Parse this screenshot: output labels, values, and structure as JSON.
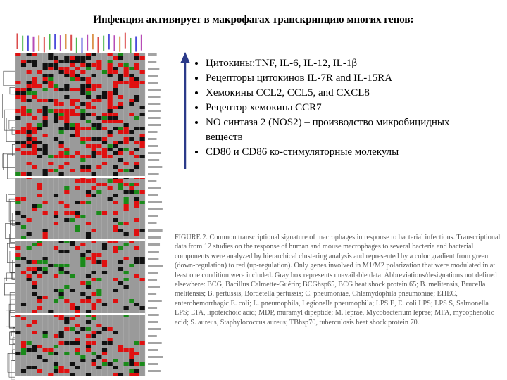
{
  "title": "Инфекция активирует в макрофагах транскрипцию многих генов:",
  "bullets": [
    "Цитокины:TNF, IL-6, IL-12, IL-1β",
    "Рецепторы цитокинов IL-7R and IL-15RA",
    "Хемокины   CCL2, CCL5, and CXCL8",
    "Рецептор хемокина CCR7",
    "NO синтаза 2 (NOS2) – производство микробицидных веществ",
    "CD80 и CD86 ко-стимуляторные молекулы"
  ],
  "caption": "FIGURE 2. Common transcriptional signature of macrophages in response to bacterial infections. Transcriptional data from 12 studies on the response of human and mouse macrophages to several bacteria and bacterial components were analyzed by hierarchical clustering analysis and represented by a color gradient from green (down-regulation) to red (up-regulation). Only genes involved in M1/M2 polarization that were modulated in at least one condition were included. Gray box represents unavailable data. Abbreviations/designations not defined elsewhere: BCG, Bacillus Calmette-Guérin; BCGhsp65, BCG heat shock protein 65; B. melitensis, Brucella melitensis; B. pertussis, Bordetella pertussis; C. pneumoniae, Chlamydophila pneumoniae; EHEC, enterohemorrhagic E. coli; L. pneumophila, Legionella pneumophila; LPS E, E. coli LPS; LPS S, Salmonella LPS; LTA, lipoteichoic acid; MDP, muramyl dipeptide; M. leprae, Mycobacterium leprae; MFA, mycophenolic acid; S. aureus, Staphylococcus aureus; TBhsp70, tuberculosis heat shock protein 70."
}
